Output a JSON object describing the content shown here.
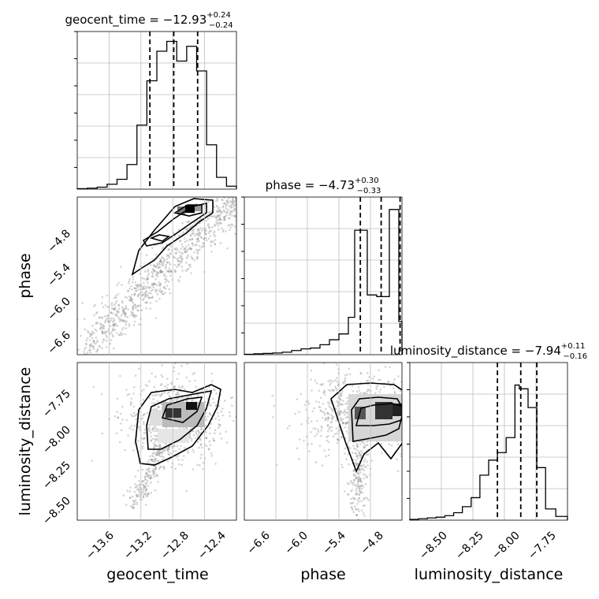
{
  "chart_data": [
    {
      "panel": "geocent_time-histogram",
      "type": "histogram",
      "title": {
        "label": "geocent_time",
        "median": "−12.93",
        "plus": "+0.24",
        "minus": "−0.24"
      },
      "xlim": [
        -13.9,
        -12.3
      ],
      "bin_edges": [
        -13.9,
        -13.8,
        -13.7,
        -13.6,
        -13.5,
        -13.4,
        -13.3,
        -13.2,
        -13.1,
        -13.0,
        -12.9,
        -12.8,
        -12.7,
        -12.6,
        -12.5,
        -12.4,
        -12.3
      ],
      "counts": [
        0.5,
        1,
        2,
        5,
        10,
        25,
        65,
        110,
        140,
        150,
        130,
        145,
        120,
        45,
        12,
        3
      ],
      "ylim": [
        0,
        160
      ],
      "quantiles": [
        -13.17,
        -12.93,
        -12.69
      ],
      "grid": true
    },
    {
      "panel": "phase-histogram",
      "type": "histogram",
      "title": {
        "label": "phase",
        "median": "−4.73",
        "plus": "+0.30",
        "minus": "−0.33"
      },
      "xlim": [
        -6.9,
        -4.4
      ],
      "bin_edges": [
        -6.9,
        -6.75,
        -6.6,
        -6.45,
        -6.3,
        -6.15,
        -6.0,
        -5.85,
        -5.7,
        -5.55,
        -5.4,
        -5.25,
        -5.15,
        -4.95,
        -4.8,
        -4.6,
        -4.45,
        -4.4
      ],
      "counts": [
        0.5,
        1,
        1.5,
        2,
        3,
        5,
        7,
        8,
        12,
        18,
        25,
        45,
        150,
        72,
        70,
        175,
        40
      ],
      "ylim": [
        0,
        190
      ],
      "quantiles": [
        -5.06,
        -4.73,
        -4.43
      ],
      "grid": true
    },
    {
      "panel": "luminosity_distance-histogram",
      "type": "histogram",
      "title": {
        "label": "luminosity_distance",
        "median": "−7.94",
        "plus": "+0.11",
        "minus": "−0.16"
      },
      "xlim": [
        -8.7,
        -7.62
      ],
      "bin_edges": [
        -8.7,
        -8.64,
        -8.58,
        -8.52,
        -8.46,
        -8.4,
        -8.34,
        -8.28,
        -8.22,
        -8.16,
        -8.1,
        -8.04,
        -7.98,
        -7.95,
        -7.89,
        -7.83,
        -7.77,
        -7.7,
        -7.62
      ],
      "counts": [
        1,
        2,
        3,
        4,
        6,
        10,
        18,
        30,
        60,
        80,
        90,
        110,
        180,
        175,
        150,
        70,
        15,
        5
      ],
      "ylim": [
        0,
        210
      ],
      "quantiles": [
        -8.1,
        -7.94,
        -7.83
      ],
      "grid": true
    },
    {
      "panel": "phase-vs-geocent_time",
      "type": "scatter+contour",
      "xlim": [
        -13.9,
        -12.3
      ],
      "ylim": [
        -6.9,
        -4.4
      ],
      "xticks": [
        "−13.6",
        "−13.2",
        "−12.8",
        "−12.4"
      ],
      "yticks": [
        "−4.8",
        "−5.4",
        "−6.0",
        "−6.6"
      ]
    },
    {
      "panel": "luminosity_distance-vs-geocent_time",
      "type": "scatter+contour",
      "xlim": [
        -13.9,
        -12.3
      ],
      "ylim": [
        -8.7,
        -7.62
      ],
      "xticks": [
        "−13.6",
        "−13.2",
        "−12.8",
        "−12.4"
      ],
      "yticks": [
        "−7.75",
        "−8.00",
        "−8.25",
        "−8.50"
      ]
    },
    {
      "panel": "luminosity_distance-vs-phase",
      "type": "scatter+contour",
      "xlim": [
        -6.9,
        -4.4
      ],
      "ylim": [
        -8.7,
        -7.62
      ],
      "xticks": [
        "−6.6",
        "−6.0",
        "−5.4",
        "−4.8"
      ],
      "yticks": [
        "−7.75",
        "−8.00",
        "−8.25",
        "−8.50"
      ]
    }
  ],
  "axis_labels": {
    "geocent_time": "geocent_time",
    "phase": "phase",
    "luminosity_distance": "luminosity_distance"
  },
  "ticks": {
    "geocent_time": [
      "−13.6",
      "−13.2",
      "−12.8",
      "−12.4"
    ],
    "phase_x": [
      "−6.6",
      "−6.0",
      "−5.4",
      "−4.8"
    ],
    "phase_y": [
      "−4.8",
      "−5.4",
      "−6.0",
      "−6.6"
    ],
    "lumdist_x": [
      "−8.50",
      "−8.25",
      "−8.00",
      "−7.75"
    ],
    "lumdist_y": [
      "−7.75",
      "−8.00",
      "−8.25",
      "−8.50"
    ]
  }
}
